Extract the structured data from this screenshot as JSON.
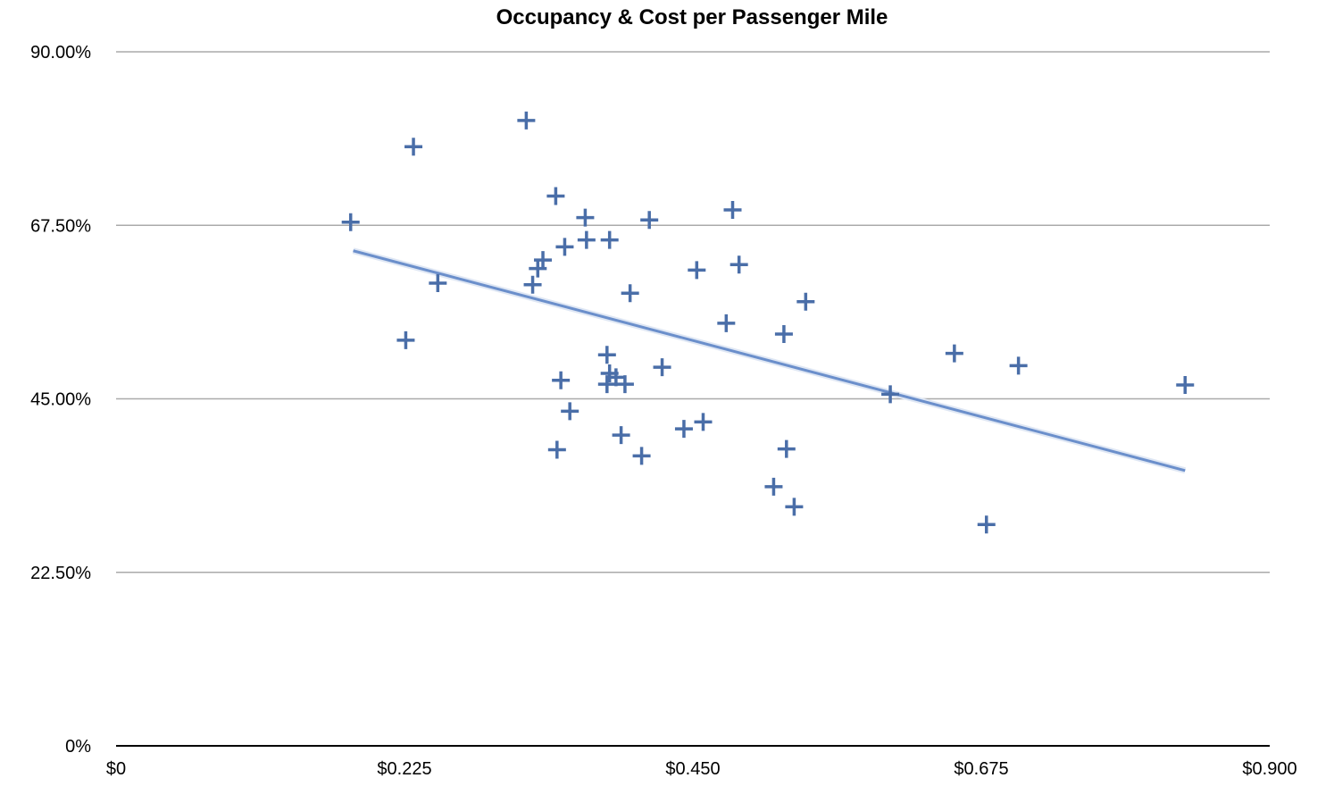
{
  "chart_data": {
    "type": "scatter",
    "title": "Occupancy & Cost per Passenger Mile",
    "xlabel": "",
    "ylabel": "",
    "xlim": [
      0,
      0.9
    ],
    "ylim": [
      0,
      90
    ],
    "x_tick_labels": [
      "$0",
      "$0.225",
      "$0.450",
      "$0.675",
      "$0.900"
    ],
    "x_ticks": [
      0,
      0.225,
      0.45,
      0.675,
      0.9
    ],
    "y_tick_labels": [
      "0%",
      "22.50%",
      "45.00%",
      "67.50%",
      "90.00%"
    ],
    "y_ticks": [
      0,
      22.5,
      45,
      67.5,
      90
    ],
    "grid": "horizontal",
    "marker": "plus",
    "color": "#4a6ea8",
    "trendline_color": "#6b8fcb",
    "points": [
      [
        0.183,
        67.9
      ],
      [
        0.232,
        77.7
      ],
      [
        0.32,
        81.1
      ],
      [
        0.226,
        52.6
      ],
      [
        0.251,
        60.0
      ],
      [
        0.343,
        71.3
      ],
      [
        0.366,
        68.5
      ],
      [
        0.367,
        65.6
      ],
      [
        0.385,
        65.6
      ],
      [
        0.35,
        64.7
      ],
      [
        0.416,
        68.2
      ],
      [
        0.481,
        69.5
      ],
      [
        0.333,
        63.0
      ],
      [
        0.329,
        61.9
      ],
      [
        0.325,
        59.8
      ],
      [
        0.401,
        58.7
      ],
      [
        0.453,
        61.7
      ],
      [
        0.486,
        62.4
      ],
      [
        0.476,
        54.8
      ],
      [
        0.538,
        57.6
      ],
      [
        0.521,
        53.4
      ],
      [
        0.383,
        50.7
      ],
      [
        0.347,
        47.4
      ],
      [
        0.385,
        48.3
      ],
      [
        0.39,
        47.8
      ],
      [
        0.383,
        46.9
      ],
      [
        0.397,
        46.9
      ],
      [
        0.426,
        49.1
      ],
      [
        0.354,
        43.4
      ],
      [
        0.344,
        38.4
      ],
      [
        0.394,
        40.3
      ],
      [
        0.41,
        37.6
      ],
      [
        0.443,
        41.1
      ],
      [
        0.458,
        42.0
      ],
      [
        0.523,
        38.5
      ],
      [
        0.513,
        33.6
      ],
      [
        0.529,
        31.0
      ],
      [
        0.604,
        45.6
      ],
      [
        0.654,
        50.9
      ],
      [
        0.704,
        49.3
      ],
      [
        0.679,
        28.7
      ],
      [
        0.834,
        46.8
      ]
    ],
    "trendline": {
      "type": "linear",
      "from": [
        0.185,
        64.2
      ],
      "to": [
        0.834,
        35.7
      ]
    }
  }
}
